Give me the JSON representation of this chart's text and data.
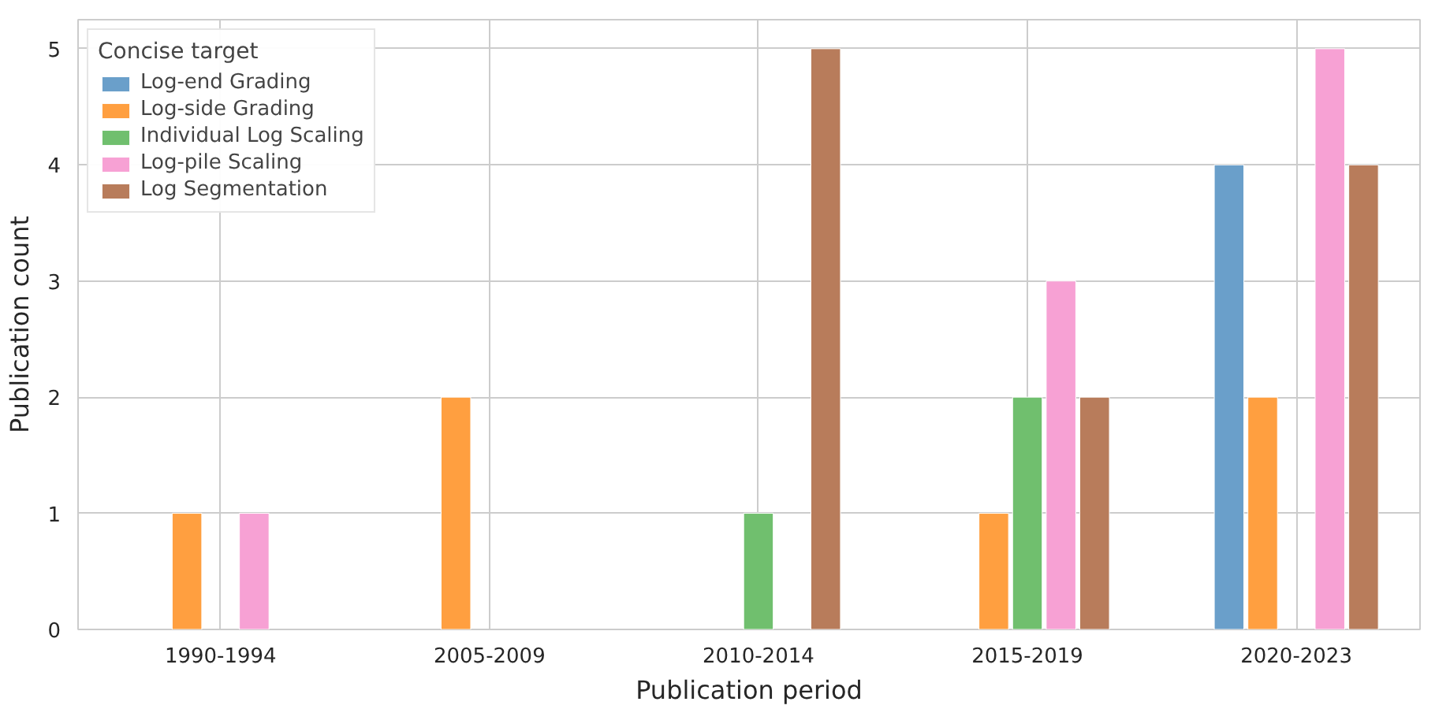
{
  "chart_data": {
    "type": "bar",
    "xlabel": "Publication period",
    "ylabel": "Publication count",
    "legend_title": "Concise target",
    "categories": [
      "1990-1994",
      "2005-2009",
      "2010-2014",
      "2015-2019",
      "2020-2023"
    ],
    "series": [
      {
        "name": "Log-end Grading",
        "color": "#6a9fca",
        "values": [
          0,
          0,
          0,
          0,
          4
        ]
      },
      {
        "name": "Log-side Grading",
        "color": "#ff9f40",
        "values": [
          1,
          2,
          0,
          1,
          2
        ]
      },
      {
        "name": "Individual Log Scaling",
        "color": "#70bf6e",
        "values": [
          0,
          0,
          1,
          2,
          0
        ]
      },
      {
        "name": "Log-pile Scaling",
        "color": "#f7a1d4",
        "values": [
          1,
          0,
          0,
          3,
          5
        ]
      },
      {
        "name": "Log Segmentation",
        "color": "#b87c5b",
        "values": [
          0,
          0,
          5,
          2,
          4
        ]
      }
    ],
    "ylim": [
      0,
      5.25
    ],
    "yticks": [
      0,
      1,
      2,
      3,
      4,
      5
    ],
    "grid": true,
    "legend": "top left"
  }
}
